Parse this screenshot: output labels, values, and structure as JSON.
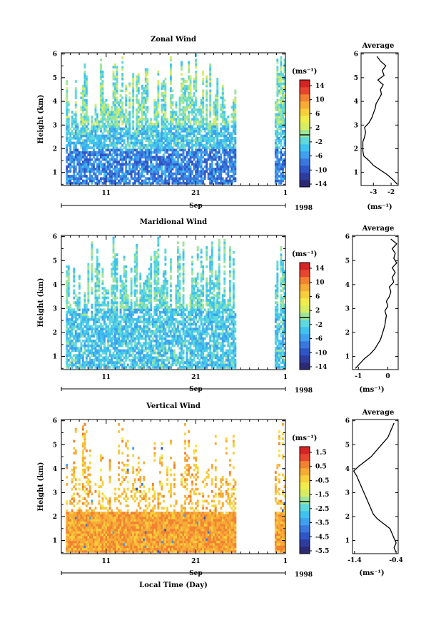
{
  "colormap": [
    "#2b2a72",
    "#2e3c9e",
    "#2f55c6",
    "#3a78dd",
    "#3fa0ee",
    "#3fc3ee",
    "#5fd8dc",
    "#9ee59b",
    "#d6ec64",
    "#f1ec4b",
    "#f7cf3c",
    "#f7ab37",
    "#f28232",
    "#e6462e",
    "#d42424"
  ],
  "chart_data": [
    {
      "type": "heatmap",
      "title": "Zonal Wind",
      "xlabel": "Sep",
      "ylabel": "Height (km)",
      "x_ticks": [
        "11",
        "21",
        "1"
      ],
      "x_ticks_pos": [
        11,
        21,
        31
      ],
      "xlim": [
        6,
        31
      ],
      "y_ticks": [
        "1",
        "2",
        "3",
        "4",
        "5",
        "6"
      ],
      "ylim": [
        0.45,
        6.05
      ],
      "year": "1998",
      "units": "(ms⁻¹)",
      "colorbar_labels": [
        "14",
        "10",
        "6",
        "2",
        "-2",
        "-6",
        "-10",
        "-14"
      ],
      "colorbar_range": [
        -16,
        16
      ],
      "data_segments": [
        [
          6.5,
          25.3
        ],
        [
          29.8,
          31
        ]
      ],
      "profile": {
        "title": "Average",
        "xlabel": "(ms⁻¹)",
        "x_ticks": [
          "-3",
          "-2"
        ],
        "x_ticks_pos": [
          -3,
          -2
        ],
        "xlim": [
          -3.7,
          -1.6
        ],
        "heights": [
          0.5,
          0.7,
          0.9,
          1.1,
          1.3,
          1.5,
          1.7,
          1.9,
          2.1,
          2.3,
          2.5,
          2.7,
          2.9,
          3.1,
          3.3,
          3.5,
          3.7,
          3.9,
          4.1,
          4.3,
          4.5,
          4.7,
          4.9,
          5.1,
          5.3,
          5.5,
          5.7,
          5.9
        ],
        "values": [
          -1.65,
          -1.9,
          -2.2,
          -2.6,
          -3.0,
          -3.25,
          -3.55,
          -3.6,
          -3.6,
          -3.6,
          -3.5,
          -3.45,
          -3.5,
          -3.25,
          -3.1,
          -3.0,
          -2.9,
          -2.85,
          -2.7,
          -2.55,
          -2.6,
          -2.45,
          -2.75,
          -2.4,
          -2.5,
          -2.3,
          -2.6,
          -2.8
        ]
      }
    },
    {
      "type": "heatmap",
      "title": "Maridional Wind",
      "xlabel": "Sep",
      "ylabel": "Height (km)",
      "x_ticks": [
        "11",
        "21",
        "1"
      ],
      "x_ticks_pos": [
        11,
        21,
        31
      ],
      "xlim": [
        6,
        31
      ],
      "y_ticks": [
        "1",
        "2",
        "3",
        "4",
        "5",
        "6"
      ],
      "ylim": [
        0.45,
        6.05
      ],
      "year": "1998",
      "units": "(ms⁻¹)",
      "colorbar_labels": [
        "14",
        "10",
        "6",
        "2",
        "-2",
        "-6",
        "-10",
        "-14"
      ],
      "colorbar_range": [
        -16,
        16
      ],
      "data_segments": [
        [
          6.5,
          25.3
        ],
        [
          29.8,
          31
        ]
      ],
      "profile": {
        "title": "Average",
        "xlabel": "(ms⁻¹)",
        "x_ticks": [
          "-1",
          "0"
        ],
        "x_ticks_pos": [
          -1,
          0
        ],
        "xlim": [
          -1.2,
          0.35
        ],
        "heights": [
          0.5,
          0.7,
          0.9,
          1.1,
          1.3,
          1.5,
          1.7,
          1.9,
          2.1,
          2.3,
          2.5,
          2.7,
          2.9,
          3.1,
          3.3,
          3.5,
          3.7,
          3.9,
          4.1,
          4.3,
          4.5,
          4.7,
          4.9,
          5.1,
          5.3,
          5.5,
          5.7,
          5.9
        ],
        "values": [
          -1.1,
          -0.95,
          -0.8,
          -0.6,
          -0.45,
          -0.35,
          -0.25,
          -0.2,
          -0.15,
          -0.1,
          -0.08,
          -0.05,
          -0.1,
          0.0,
          -0.05,
          0.05,
          0.1,
          0.05,
          0.2,
          0.15,
          0.25,
          0.15,
          0.3,
          0.2,
          0.25,
          0.15,
          0.3,
          0.1
        ]
      }
    },
    {
      "type": "heatmap",
      "title": "Vertical Wind",
      "xlabel": "Sep",
      "ylabel": "Height (km)",
      "x_ticks": [
        "11",
        "21",
        "1"
      ],
      "x_ticks_pos": [
        11,
        21,
        31
      ],
      "xlim": [
        6,
        31
      ],
      "y_ticks": [
        "1",
        "2",
        "3",
        "4",
        "5",
        "6"
      ],
      "ylim": [
        0.45,
        6.05
      ],
      "year": "1998",
      "units": "(ms⁻¹)",
      "colorbar_labels": [
        "1.5",
        "0.5",
        "-0.5",
        "-1.5",
        "-2.5",
        "-3.5",
        "-4.5",
        "-5.5"
      ],
      "colorbar_range": [
        -6,
        2
      ],
      "data_segments": [
        [
          6.5,
          25.3
        ],
        [
          29.8,
          31
        ]
      ],
      "profile": {
        "title": "Average",
        "xlabel": "(ms⁻¹)",
        "x_ticks": [
          "-1.4",
          "-0.4"
        ],
        "x_ticks_pos": [
          -1.4,
          -0.4
        ],
        "xlim": [
          -1.45,
          -0.35
        ],
        "heights": [
          0.5,
          0.7,
          0.9,
          1.1,
          1.3,
          1.5,
          1.7,
          1.9,
          2.1,
          2.3,
          2.5,
          2.7,
          2.9,
          3.1,
          3.3,
          3.5,
          3.7,
          3.9,
          4.1,
          4.3,
          4.5,
          4.7,
          4.9,
          5.1,
          5.3,
          5.5,
          5.7,
          5.9
        ],
        "values": [
          -0.4,
          -0.45,
          -0.4,
          -0.45,
          -0.5,
          -0.55,
          -0.7,
          -0.85,
          -0.95,
          -1.0,
          -1.05,
          -1.1,
          -1.15,
          -1.2,
          -1.25,
          -1.3,
          -1.35,
          -1.42,
          -1.3,
          -1.15,
          -1.0,
          -0.9,
          -0.8,
          -0.7,
          -0.6,
          -0.55,
          -0.5,
          -0.45
        ]
      }
    }
  ],
  "xaxis_bottom_label": "Local Time (Day)"
}
